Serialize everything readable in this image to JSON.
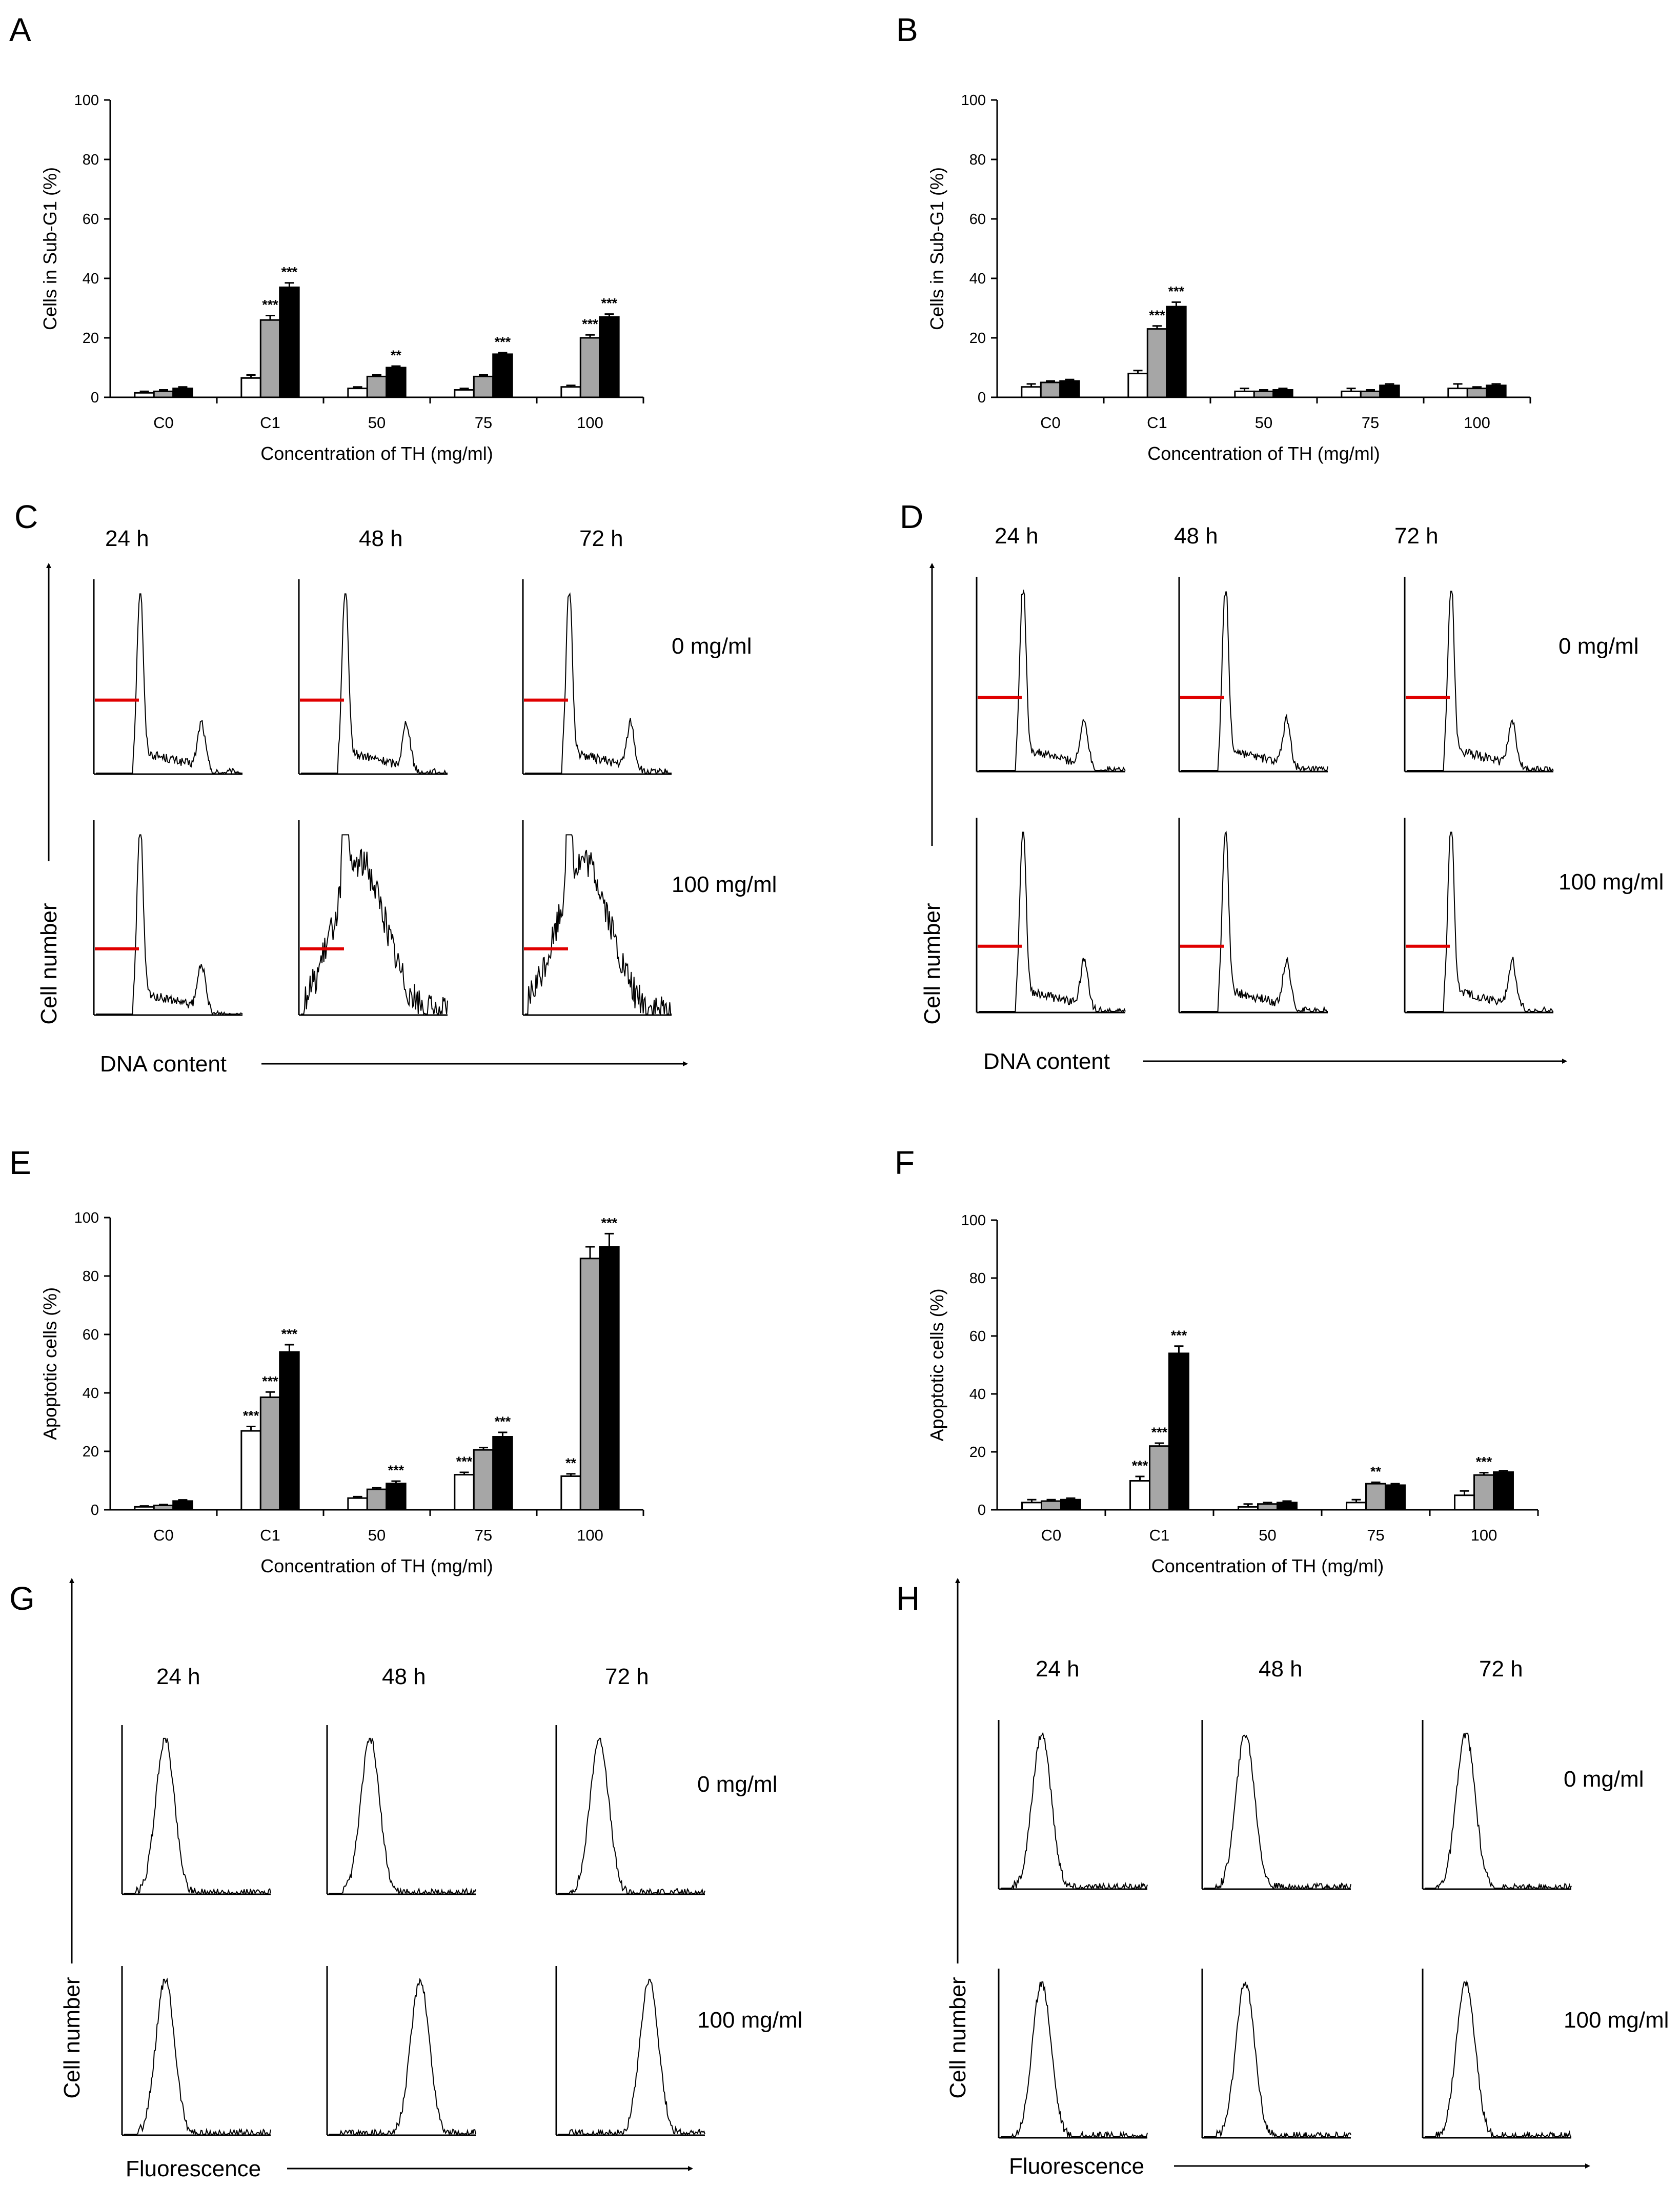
{
  "panels": {
    "A": {
      "letter": "A"
    },
    "B": {
      "letter": "B"
    },
    "C": {
      "letter": "C"
    },
    "D": {
      "letter": "D"
    },
    "E": {
      "letter": "E"
    },
    "F": {
      "letter": "F"
    },
    "G": {
      "letter": "G"
    },
    "H": {
      "letter": "H"
    }
  },
  "series_colors": {
    "24h": "#ffffff",
    "48h": "#a6a6a6",
    "72h": "#000000",
    "gate": "#e00000"
  },
  "chart_data": [
    {
      "id": "A",
      "type": "bar",
      "ylabel": "Cells in Sub-G1 (%)",
      "xlabel": "Concentration of TH (mg/ml)",
      "ylim": [
        0,
        100
      ],
      "yticks": [
        "0",
        "20",
        "40",
        "60",
        "80",
        "100"
      ],
      "categories": [
        "C0",
        "C1",
        "50",
        "75",
        "100"
      ],
      "series": [
        {
          "name": "24 h",
          "values": [
            1.5,
            6.5,
            3,
            2.5,
            3.5
          ],
          "errors": [
            0.5,
            1.0,
            0.5,
            0.5,
            0.5
          ],
          "sig": [
            "",
            "",
            "",
            "",
            ""
          ]
        },
        {
          "name": "48 h",
          "values": [
            2,
            26,
            7,
            7,
            20
          ],
          "errors": [
            0.5,
            1.5,
            0.5,
            0.5,
            1.0
          ],
          "sig": [
            "",
            "***",
            "",
            "",
            "***"
          ]
        },
        {
          "name": "72 h",
          "values": [
            3,
            37,
            10,
            14.5,
            27
          ],
          "errors": [
            0.5,
            1.5,
            0.5,
            0.5,
            1.0
          ],
          "sig": [
            "",
            "***",
            "**",
            "***",
            "***"
          ]
        }
      ]
    },
    {
      "id": "B",
      "type": "bar",
      "ylabel": "Cells in Sub-G1 (%)",
      "xlabel": "Concentration of TH (mg/ml)",
      "ylim": [
        0,
        100
      ],
      "yticks": [
        "0",
        "20",
        "40",
        "60",
        "80",
        "100"
      ],
      "categories": [
        "C0",
        "C1",
        "50",
        "75",
        "100"
      ],
      "series": [
        {
          "name": "24 h",
          "values": [
            3.5,
            8,
            2,
            2,
            3
          ],
          "errors": [
            1.0,
            1.0,
            1.0,
            1.0,
            1.5
          ],
          "sig": [
            "",
            "",
            "",
            "",
            ""
          ]
        },
        {
          "name": "48 h",
          "values": [
            5,
            23,
            2,
            2,
            3
          ],
          "errors": [
            0.5,
            1.0,
            0.5,
            0.5,
            0.5
          ],
          "sig": [
            "",
            "***",
            "",
            "",
            ""
          ]
        },
        {
          "name": "72 h",
          "values": [
            5.5,
            30.5,
            2.5,
            4,
            4
          ],
          "errors": [
            0.5,
            1.5,
            0.5,
            0.5,
            0.5
          ],
          "sig": [
            "",
            "***",
            "",
            "",
            ""
          ]
        }
      ]
    },
    {
      "id": "E",
      "type": "bar",
      "ylabel": "Apoptotic cells (%)",
      "xlabel": "Concentration of TH (mg/ml)",
      "ylim": [
        0,
        100
      ],
      "yticks": [
        "0",
        "20",
        "40",
        "60",
        "80",
        "100"
      ],
      "categories": [
        "C0",
        "C1",
        "50",
        "75",
        "100"
      ],
      "series": [
        {
          "name": "24 h",
          "values": [
            1,
            27,
            4,
            12,
            11.5
          ],
          "errors": [
            0.3,
            1.5,
            0.5,
            0.8,
            0.8
          ],
          "sig": [
            "",
            "***",
            "",
            "***",
            "**"
          ]
        },
        {
          "name": "48 h",
          "values": [
            1.5,
            38.5,
            7,
            20.5,
            86
          ],
          "errors": [
            0.3,
            1.8,
            0.5,
            0.8,
            4.0
          ],
          "sig": [
            "",
            "***",
            "",
            "",
            ""
          ]
        },
        {
          "name": "72 h",
          "values": [
            3,
            54,
            9,
            25,
            90
          ],
          "errors": [
            0.4,
            2.5,
            0.8,
            1.5,
            4.5
          ],
          "sig": [
            "",
            "***",
            "***",
            "***",
            "***"
          ]
        }
      ]
    },
    {
      "id": "F",
      "type": "bar",
      "ylabel": "Apoptotic cells (%)",
      "xlabel": "Concentration of TH (mg/ml)",
      "ylim": [
        0,
        100
      ],
      "yticks": [
        "0",
        "20",
        "40",
        "60",
        "80",
        "100"
      ],
      "categories": [
        "C0",
        "C1",
        "50",
        "75",
        "100"
      ],
      "series": [
        {
          "name": "24 h",
          "values": [
            2.5,
            10,
            1,
            2.5,
            5
          ],
          "errors": [
            1.0,
            1.5,
            1.0,
            1.0,
            1.5
          ],
          "sig": [
            "",
            "***",
            "",
            "",
            ""
          ]
        },
        {
          "name": "48 h",
          "values": [
            3,
            22,
            2,
            9,
            12
          ],
          "errors": [
            0.5,
            1.0,
            0.5,
            0.5,
            0.8
          ],
          "sig": [
            "",
            "***",
            "",
            "**",
            "***"
          ]
        },
        {
          "name": "72 h",
          "values": [
            3.5,
            54,
            2.5,
            8.5,
            13
          ],
          "errors": [
            0.5,
            2.5,
            0.5,
            0.5,
            0.5
          ],
          "sig": [
            "",
            "***",
            "",
            "",
            ""
          ]
        }
      ]
    }
  ],
  "flow": {
    "C": {
      "times": [
        "24 h",
        "48 h",
        "72 h"
      ],
      "concs": [
        "0 mg/ml",
        "100 mg/ml"
      ],
      "ylabel": "Cell number",
      "xlabel": "DNA content"
    },
    "D": {
      "times": [
        "24 h",
        "48 h",
        "72 h"
      ],
      "concs": [
        "0 mg/ml",
        "100 mg/ml"
      ],
      "ylabel": "Cell number",
      "xlabel": "DNA content"
    },
    "G": {
      "times": [
        "24 h",
        "48 h",
        "72 h"
      ],
      "concs": [
        "0 mg/ml",
        "100 mg/ml"
      ],
      "ylabel": "Cell number",
      "xlabel": "Fluorescence"
    },
    "H": {
      "times": [
        "24 h",
        "48 h",
        "72 h"
      ],
      "concs": [
        "0 mg/ml",
        "100 mg/ml"
      ],
      "ylabel": "Cell number",
      "xlabel": "Fluorescence"
    }
  }
}
